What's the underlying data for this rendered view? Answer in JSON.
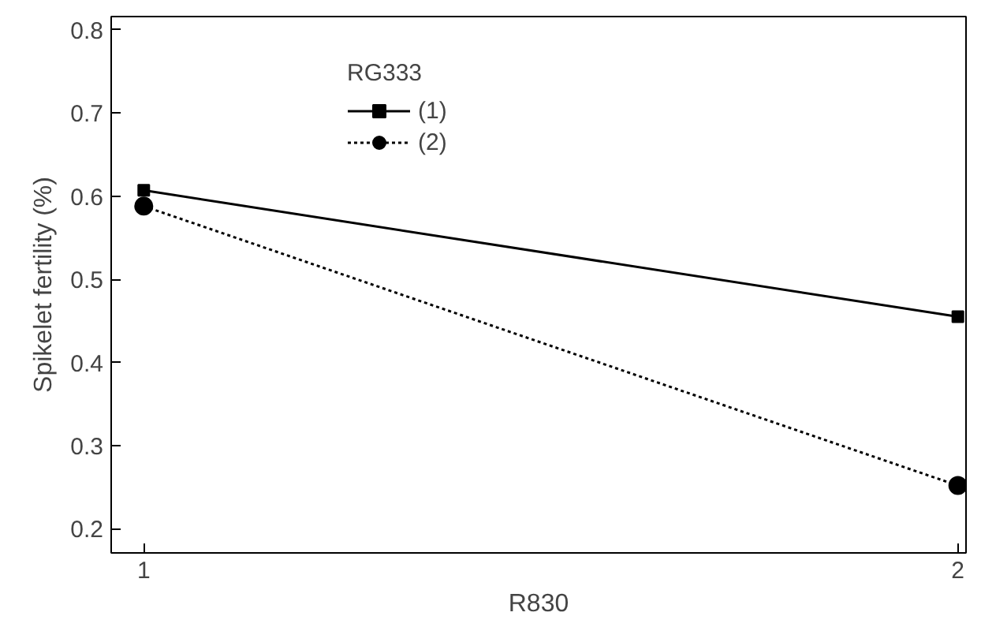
{
  "chart_data": {
    "type": "line",
    "xlabel": "R830",
    "ylabel": "Spikelet fertility (%)",
    "legend_title": "RG333",
    "x": [
      1,
      2
    ],
    "series": [
      {
        "name": "(1)",
        "color": "#000000",
        "values": [
          0.607,
          0.455
        ],
        "marker": "square",
        "line_style": "solid"
      },
      {
        "name": "(2)",
        "color": "#000000",
        "values": [
          0.588,
          0.252
        ],
        "marker": "circle",
        "line_style": "dotted"
      }
    ],
    "xlim": [
      0.96,
      2.01
    ],
    "xticks": [
      1,
      2
    ],
    "ylim": [
      0.171,
      0.816
    ],
    "yticks": [
      {
        "value": 0.2,
        "label": "0.2"
      },
      {
        "value": 0.3,
        "label": "0.3"
      },
      {
        "value": 0.4,
        "label": "0.4"
      },
      {
        "value": 0.5,
        "label": "0.5"
      },
      {
        "value": 0.6,
        "label": "0.6"
      },
      {
        "value": 0.7,
        "label": "0.7"
      },
      {
        "value": 0.8,
        "label": "0.8"
      }
    ],
    "grid": false,
    "legend": "top"
  }
}
